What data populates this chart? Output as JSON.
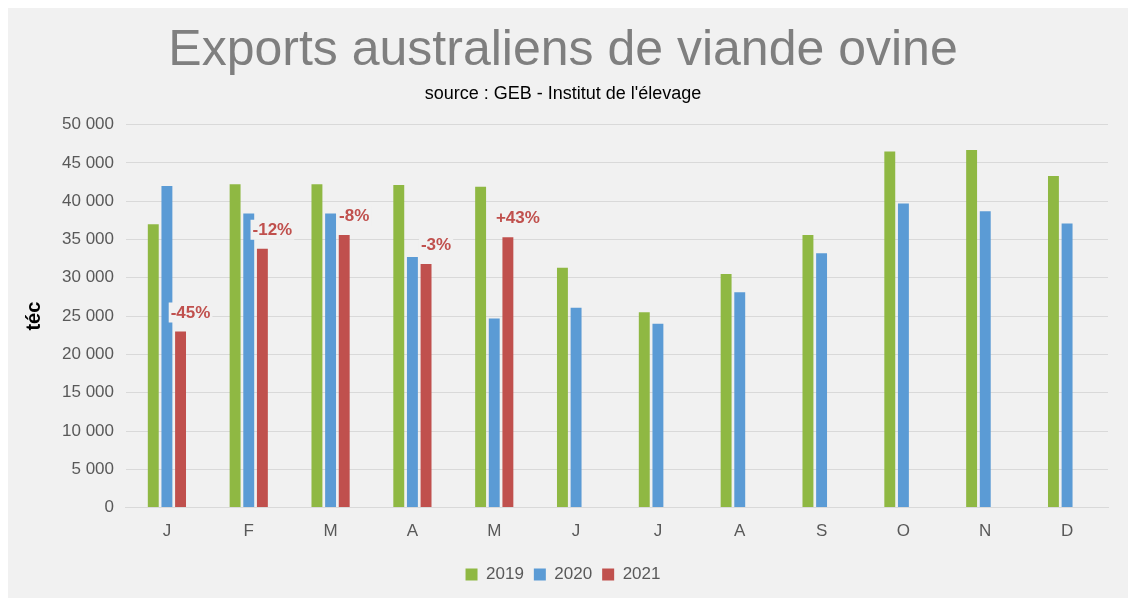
{
  "chart_data": {
    "type": "bar",
    "title": "Exports australiens de viande ovine",
    "subtitle": "source : GEB - Institut de l'élevage",
    "ylabel": "téc",
    "categories": [
      "J",
      "F",
      "M",
      "A",
      "M",
      "J",
      "J",
      "A",
      "S",
      "O",
      "N",
      "D"
    ],
    "series": [
      {
        "name": "2019",
        "color": "#8fb843",
        "values": [
          37000,
          42200,
          42200,
          42100,
          41900,
          31300,
          25500,
          30500,
          35600,
          46500,
          46700,
          43300
        ]
      },
      {
        "name": "2020",
        "color": "#5b9bd5",
        "values": [
          42000,
          38400,
          38400,
          32700,
          24700,
          26100,
          24000,
          28100,
          33200,
          39700,
          38700,
          37100
        ]
      },
      {
        "name": "2021",
        "color": "#c0504d",
        "values": [
          23000,
          33800,
          35600,
          31800,
          35300,
          null,
          null,
          null,
          null,
          null,
          null,
          null
        ]
      }
    ],
    "ylim": [
      0,
      50000
    ],
    "yticks": [
      {
        "value": 0,
        "label": "0"
      },
      {
        "value": 5000,
        "label": "5 000"
      },
      {
        "value": 10000,
        "label": "10 000"
      },
      {
        "value": 15000,
        "label": "15 000"
      },
      {
        "value": 20000,
        "label": "20 000"
      },
      {
        "value": 25000,
        "label": "25 000"
      },
      {
        "value": 30000,
        "label": "30 000"
      },
      {
        "value": 35000,
        "label": "35 000"
      },
      {
        "value": 40000,
        "label": "40 000"
      },
      {
        "value": 45000,
        "label": "45 000"
      },
      {
        "value": 50000,
        "label": "50 000"
      }
    ],
    "annotations": [
      "-45%",
      "-12%",
      "-8%",
      "-3%",
      "+43%"
    ],
    "grid": "y",
    "legend": "bottom"
  }
}
